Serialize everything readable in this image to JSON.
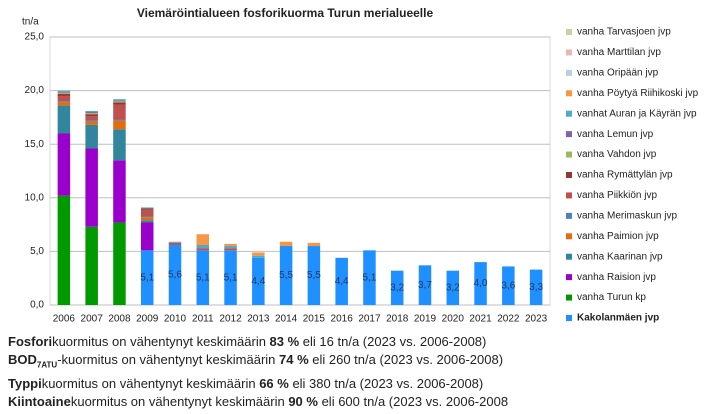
{
  "chart_data": {
    "type": "stacked_bar",
    "title": "Viemäröintialueen fosforikuorma Turun merialueelle",
    "y_label": "tn/a",
    "categories": [
      "2006",
      "2007",
      "2008",
      "2009",
      "2010",
      "2011",
      "2012",
      "2013",
      "2014",
      "2015",
      "2016",
      "2017",
      "2018",
      "2019",
      "2020",
      "2021",
      "2022",
      "2023"
    ],
    "ylim": [
      0,
      25
    ],
    "yticks": [
      {
        "value": 0,
        "label": "0,0"
      },
      {
        "value": 5,
        "label": "5,0"
      },
      {
        "value": 10,
        "label": "10,0"
      },
      {
        "value": 15,
        "label": "15,0"
      },
      {
        "value": 20,
        "label": "20,0"
      },
      {
        "value": 25,
        "label": "25,0"
      }
    ],
    "grid": true,
    "legend": "right",
    "series": [
      {
        "name": "Kakolanmäen jvp",
        "color": "#1e90ff",
        "values": [
          null,
          null,
          null,
          5.1,
          5.6,
          5.1,
          5.1,
          4.4,
          5.5,
          5.5,
          4.4,
          5.1,
          3.2,
          3.7,
          3.2,
          4.0,
          3.6,
          3.3
        ],
        "value_labels": [
          null,
          null,
          null,
          "5,1",
          "5,6",
          "5,1",
          "5,1",
          "4,4",
          "5,5",
          "5,5",
          "4,4",
          "5,1",
          "3,2",
          "3,7",
          "3,2",
          "4,0",
          "3,6",
          "3,3"
        ]
      },
      {
        "name": "vanha Turun kp",
        "color": "#009a00",
        "values": [
          10.2,
          7.3,
          7.7,
          null,
          null,
          null,
          null,
          null,
          null,
          null,
          null,
          null,
          null,
          null,
          null,
          null,
          null,
          null
        ]
      },
      {
        "name": "vanha Raision jvp",
        "color": "#9a00cc",
        "values": [
          5.8,
          7.3,
          5.8,
          2.6,
          null,
          null,
          null,
          null,
          null,
          null,
          null,
          null,
          null,
          null,
          null,
          null,
          null,
          null
        ]
      },
      {
        "name": "vanha Kaarinan jvp",
        "color": "#31859c",
        "values": [
          2.6,
          2.2,
          2.9,
          0.2,
          null,
          null,
          null,
          null,
          null,
          null,
          null,
          null,
          null,
          null,
          null,
          null,
          null,
          null
        ]
      },
      {
        "name": "vanha Paimion jvp",
        "color": "#e46c0a",
        "values": [
          0.3,
          0.3,
          0.8,
          0.3,
          null,
          null,
          null,
          null,
          null,
          null,
          null,
          null,
          null,
          null,
          null,
          null,
          null,
          null
        ]
      },
      {
        "name": "vanha Merimaskun jvp",
        "color": "#4f81bd",
        "values": [
          0.1,
          0.1,
          0.1,
          0.1,
          null,
          null,
          null,
          null,
          null,
          null,
          null,
          null,
          null,
          null,
          null,
          null,
          null,
          null
        ]
      },
      {
        "name": "vanha Piikkiön jvp",
        "color": "#c0504d",
        "values": [
          0.5,
          0.4,
          1.4,
          0.6,
          0.2,
          0.2,
          0.2,
          null,
          null,
          null,
          null,
          null,
          null,
          null,
          null,
          null,
          null,
          null
        ]
      },
      {
        "name": "vanha Rymättylän jvp",
        "color": "#953735",
        "values": [
          0.2,
          0.2,
          0.2,
          0.1,
          null,
          null,
          null,
          null,
          null,
          null,
          null,
          null,
          null,
          null,
          null,
          null,
          null,
          null
        ]
      },
      {
        "name": "vanha Vahdon jvp",
        "color": "#9bbb59",
        "values": [
          0.1,
          0.1,
          0.1,
          null,
          null,
          null,
          null,
          null,
          null,
          null,
          null,
          null,
          null,
          null,
          null,
          null,
          null,
          null
        ]
      },
      {
        "name": "vanha Lemun jvp",
        "color": "#8064a2",
        "values": [
          0.1,
          0.1,
          0.1,
          null,
          null,
          null,
          null,
          null,
          null,
          null,
          null,
          null,
          null,
          null,
          null,
          null,
          null,
          null
        ]
      },
      {
        "name": "vanhat Auran ja Käyrän jvp",
        "color": "#4bacc6",
        "values": [
          0.1,
          0.1,
          0.1,
          0.1,
          0.1,
          0.3,
          0.2,
          0.2,
          null,
          null,
          null,
          null,
          null,
          null,
          null,
          null,
          null,
          null
        ]
      },
      {
        "name": "vanha Pöytyä Riihikoski jvp",
        "color": "#f79646",
        "values": [
          null,
          null,
          null,
          null,
          null,
          1.0,
          0.2,
          0.3,
          0.4,
          0.3,
          null,
          null,
          null,
          null,
          null,
          null,
          null,
          null
        ]
      },
      {
        "name": "vanha Oripään jvp",
        "color": "#b9cde5",
        "values": [
          null,
          null,
          null,
          null,
          null,
          null,
          null,
          null,
          null,
          null,
          null,
          null,
          null,
          null,
          null,
          null,
          null,
          null
        ]
      },
      {
        "name": "vanha Marttilan jvp",
        "color": "#e6b9b8",
        "values": [
          null,
          null,
          null,
          null,
          null,
          null,
          null,
          null,
          null,
          null,
          null,
          null,
          null,
          null,
          null,
          null,
          null,
          null
        ]
      },
      {
        "name": "vanha Tarvasjoen jvp",
        "color": "#c3d69b",
        "values": [
          null,
          null,
          null,
          null,
          null,
          null,
          null,
          null,
          null,
          null,
          null,
          null,
          null,
          null,
          null,
          null,
          null,
          null
        ]
      }
    ]
  },
  "notes": [
    {
      "lead": "Fosfori",
      "middle": "kuormitus on vähentynyt keskimäärin ",
      "pct": "83 %",
      "tail": " eli 16 tn/a (2023 vs. 2006-2008)"
    },
    {
      "lead": "BOD",
      "sub": "7ATU",
      "middle": "-kuormitus on vähentynyt keskimäärin ",
      "pct": "74 %",
      "tail": " eli 260 tn/a (2023 vs. 2006-2008)"
    },
    {
      "lead": "Typpi",
      "middle": "kuormitus on vähentynyt keskimäärin ",
      "pct": "66 %",
      "tail": " eli 380 tn/a (2023 vs. 2006-2008)"
    },
    {
      "lead": "Kiintoaine",
      "middle": "kuormitus on vähentynyt keskimäärin ",
      "pct": "90 %",
      "tail": " eli 600 tn/a (2023 vs. 2006-2008"
    }
  ]
}
